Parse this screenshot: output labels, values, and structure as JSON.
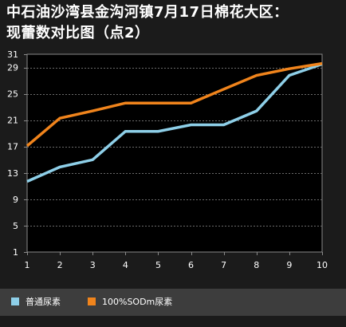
{
  "title_line1": "中石油沙湾县金沟河镇7月17日棉花大区：",
  "title_line2": "现蕾数对比图（点2）",
  "chart_data": {
    "type": "line",
    "x": [
      1,
      2,
      3,
      4,
      5,
      6,
      7,
      8,
      9,
      10
    ],
    "ylim": [
      1,
      31
    ],
    "yticks": [
      1,
      5,
      9,
      13,
      17,
      21,
      25,
      29,
      31
    ],
    "grid": true,
    "legend_position": "bottom",
    "series": [
      {
        "name": "普通尿素",
        "color": "#8ecfe8",
        "values": [
          11.7,
          13.9,
          15,
          19.3,
          19.3,
          20.3,
          20.3,
          22.4,
          27.8,
          29.5
        ]
      },
      {
        "name": "100%SODm尿素",
        "color": "#f0841c",
        "values": [
          17.1,
          21.3,
          22.4,
          23.6,
          23.6,
          23.6,
          25.7,
          27.8,
          28.8,
          29.6
        ]
      }
    ]
  }
}
